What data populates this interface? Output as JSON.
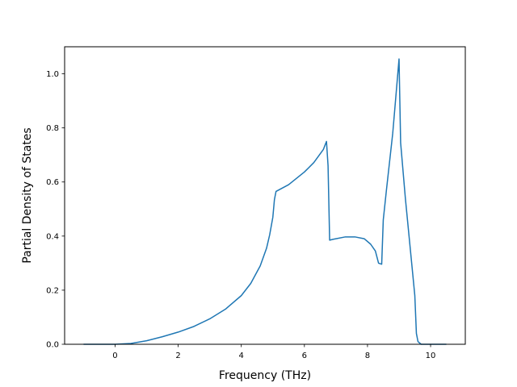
{
  "chart_data": {
    "type": "line",
    "title": "",
    "xlabel": "Frequency (THz)",
    "ylabel": "Partial Density of States",
    "xlim": [
      -1.6,
      11.1
    ],
    "ylim": [
      0.0,
      1.1
    ],
    "xticks": [
      0,
      2,
      4,
      6,
      8,
      10
    ],
    "xtick_labels": [
      "0",
      "2",
      "4",
      "6",
      "8",
      "10"
    ],
    "yticks": [
      0.0,
      0.2,
      0.4,
      0.6,
      0.8,
      1.0
    ],
    "ytick_labels": [
      "0.0",
      "0.2",
      "0.4",
      "0.6",
      "0.8",
      "1.0"
    ],
    "grid": false,
    "legend": "none",
    "series": [
      {
        "color": "#1f77b4",
        "x": [
          -1.0,
          -0.5,
          0.0,
          0.5,
          1.0,
          1.5,
          2.0,
          2.5,
          3.0,
          3.5,
          4.0,
          4.3,
          4.6,
          4.8,
          4.9,
          5.0,
          5.05,
          5.1,
          5.5,
          6.0,
          6.3,
          6.6,
          6.65,
          6.7,
          6.75,
          6.8,
          6.9,
          7.3,
          7.6,
          7.9,
          8.1,
          8.25,
          8.35,
          8.4,
          8.45,
          8.5,
          8.6,
          8.8,
          9.0,
          9.05,
          9.2,
          9.4,
          9.5,
          9.55,
          9.6,
          9.7,
          10.0,
          10.5
        ],
        "y": [
          0.0,
          0.0,
          0.0,
          0.003,
          0.013,
          0.028,
          0.045,
          0.066,
          0.094,
          0.13,
          0.18,
          0.225,
          0.29,
          0.355,
          0.405,
          0.47,
          0.535,
          0.565,
          0.59,
          0.637,
          0.672,
          0.72,
          0.735,
          0.75,
          0.66,
          0.385,
          0.388,
          0.397,
          0.397,
          0.39,
          0.37,
          0.345,
          0.3,
          0.298,
          0.296,
          0.46,
          0.57,
          0.78,
          1.055,
          0.745,
          0.54,
          0.3,
          0.18,
          0.04,
          0.01,
          0.0,
          0.0,
          0.0
        ]
      }
    ]
  }
}
